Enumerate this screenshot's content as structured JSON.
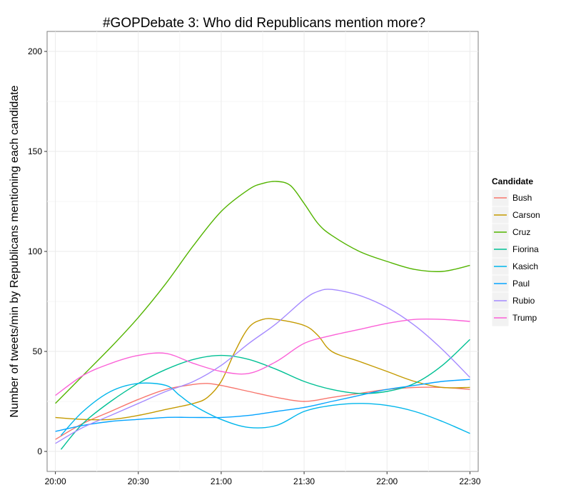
{
  "chart_data": {
    "type": "line",
    "title": "#GOPDebate 3: Who did Republicans mention more?",
    "ylabel": "Number of tweets/min by Republicans mentioning each candidate",
    "xlabel": "",
    "x_ticks": [
      "20:00",
      "20:30",
      "21:00",
      "21:30",
      "22:00",
      "22:30"
    ],
    "y_ticks": [
      "0",
      "50",
      "100",
      "150",
      "200"
    ],
    "xlim": [
      "19:57",
      "22:33"
    ],
    "ylim": [
      -10,
      210
    ],
    "grid": true,
    "legend_title": "Candidate",
    "legend_position": "right",
    "series": [
      {
        "name": "Bush",
        "color": "#F8766D",
        "x": [
          "20:00",
          "20:10",
          "20:20",
          "20:30",
          "20:40",
          "20:50",
          "20:55",
          "21:00",
          "21:10",
          "21:20",
          "21:30",
          "21:40",
          "21:50",
          "22:00",
          "22:10",
          "22:20",
          "22:30"
        ],
        "values": [
          6,
          14,
          20,
          26,
          31,
          33.5,
          34,
          33,
          30,
          27,
          25,
          27,
          29,
          31,
          32,
          32,
          31
        ]
      },
      {
        "name": "Carson",
        "color": "#C49A00",
        "x": [
          "20:00",
          "20:10",
          "20:20",
          "20:30",
          "20:40",
          "20:50",
          "20:55",
          "21:00",
          "21:05",
          "21:10",
          "21:15",
          "21:20",
          "21:30",
          "21:35",
          "21:40",
          "21:50",
          "22:00",
          "22:10",
          "22:20",
          "22:30"
        ],
        "values": [
          17,
          16,
          16,
          18,
          21,
          24,
          27,
          35,
          50,
          62,
          66,
          66,
          63,
          58,
          50,
          45,
          40,
          35,
          32,
          32
        ]
      },
      {
        "name": "Cruz",
        "color": "#53B400",
        "x": [
          "20:00",
          "20:10",
          "20:20",
          "20:30",
          "20:40",
          "20:50",
          "21:00",
          "21:10",
          "21:15",
          "21:20",
          "21:25",
          "21:30",
          "21:35",
          "21:40",
          "21:50",
          "22:00",
          "22:10",
          "22:20",
          "22:30"
        ],
        "values": [
          24,
          38,
          52,
          67,
          84,
          103,
          120,
          131,
          134,
          135,
          133,
          124,
          114,
          108,
          100,
          95,
          91,
          90,
          93
        ]
      },
      {
        "name": "Fiorina",
        "color": "#00C094",
        "x": [
          "20:02",
          "20:10",
          "20:20",
          "20:30",
          "20:40",
          "20:50",
          "21:00",
          "21:10",
          "21:20",
          "21:30",
          "21:40",
          "21:50",
          "22:00",
          "22:10",
          "22:20",
          "22:30"
        ],
        "values": [
          1,
          14,
          25,
          34,
          41,
          46,
          48,
          46,
          41,
          35,
          31,
          29,
          30,
          34,
          43,
          56
        ]
      },
      {
        "name": "Kasich",
        "color": "#00B6EB",
        "x": [
          "20:02",
          "20:10",
          "20:20",
          "20:30",
          "20:40",
          "20:45",
          "20:50",
          "21:00",
          "21:10",
          "21:20",
          "21:30",
          "21:40",
          "21:50",
          "22:00",
          "22:10",
          "22:20",
          "22:30"
        ],
        "values": [
          8,
          20,
          30,
          34,
          33,
          28,
          23,
          16,
          12,
          13,
          20,
          23,
          24,
          23,
          20,
          15,
          9
        ]
      },
      {
        "name": "Paul",
        "color": "#06A4FF",
        "x": [
          "20:00",
          "20:10",
          "20:20",
          "20:30",
          "20:40",
          "20:50",
          "21:00",
          "21:10",
          "21:20",
          "21:30",
          "21:40",
          "21:50",
          "22:00",
          "22:10",
          "22:20",
          "22:30"
        ],
        "values": [
          10,
          13,
          15,
          16,
          17,
          17,
          17,
          18,
          20,
          22,
          25,
          28,
          31,
          33,
          35,
          36
        ]
      },
      {
        "name": "Rubio",
        "color": "#A58AFF",
        "x": [
          "20:00",
          "20:10",
          "20:20",
          "20:30",
          "20:40",
          "20:50",
          "21:00",
          "21:10",
          "21:20",
          "21:30",
          "21:35",
          "21:40",
          "21:50",
          "22:00",
          "22:10",
          "22:20",
          "22:30"
        ],
        "values": [
          4,
          12,
          18,
          24,
          30,
          35,
          43,
          54,
          64,
          76,
          80,
          81,
          78,
          72,
          63,
          51,
          37
        ]
      },
      {
        "name": "Trump",
        "color": "#FB61D7",
        "x": [
          "20:00",
          "20:10",
          "20:20",
          "20:30",
          "20:40",
          "20:50",
          "21:00",
          "21:10",
          "21:20",
          "21:30",
          "21:40",
          "21:50",
          "22:00",
          "22:10",
          "22:20",
          "22:30"
        ],
        "values": [
          28,
          38,
          44,
          48,
          49,
          44,
          40,
          39,
          45,
          54,
          58,
          61,
          64,
          66,
          66,
          65
        ]
      }
    ]
  }
}
